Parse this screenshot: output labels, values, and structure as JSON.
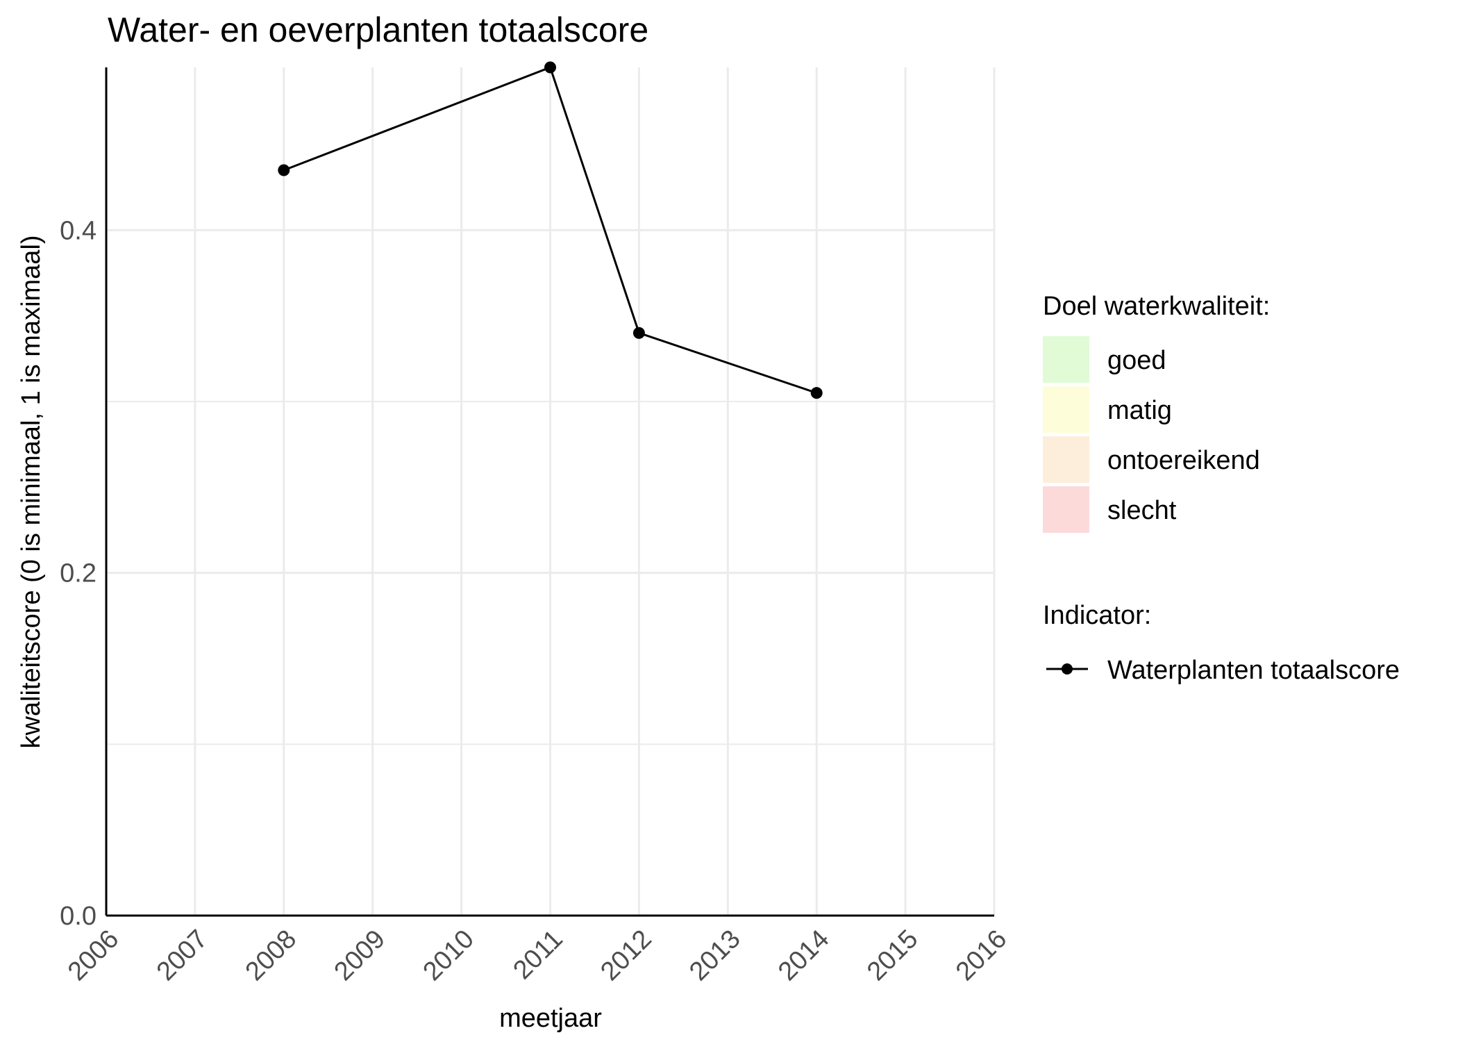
{
  "chart_data": {
    "type": "line",
    "title": "Water- en oeverplanten totaalscore",
    "xlabel": "meetjaar",
    "ylabel": "kwaliteitscore (0 is minimaal, 1 is maximaal)",
    "xlim": [
      2006,
      2016
    ],
    "ylim": [
      0,
      0.495
    ],
    "x_ticks": [
      "2006",
      "2007",
      "2008",
      "2009",
      "2010",
      "2011",
      "2012",
      "2013",
      "2014",
      "2015",
      "2016"
    ],
    "y_ticks": [
      "0.0",
      "0.2",
      "0.4"
    ],
    "grid": true,
    "series": [
      {
        "name": "Waterplanten totaalscore",
        "color": "#000000",
        "x": [
          2008,
          2011,
          2012,
          2014
        ],
        "y": [
          0.435,
          0.495,
          0.34,
          0.305
        ]
      }
    ],
    "legend": {
      "position": "right",
      "quality_title": "Doel waterkwaliteit:",
      "quality_items": [
        {
          "label": "goed",
          "color": "#e0fbd6"
        },
        {
          "label": "matig",
          "color": "#fdfdd9"
        },
        {
          "label": "ontoereikend",
          "color": "#fdeedb"
        },
        {
          "label": "slecht",
          "color": "#fcdada"
        }
      ],
      "indicator_title": "Indicator:",
      "indicator_label": "Waterplanten totaalscore"
    }
  }
}
